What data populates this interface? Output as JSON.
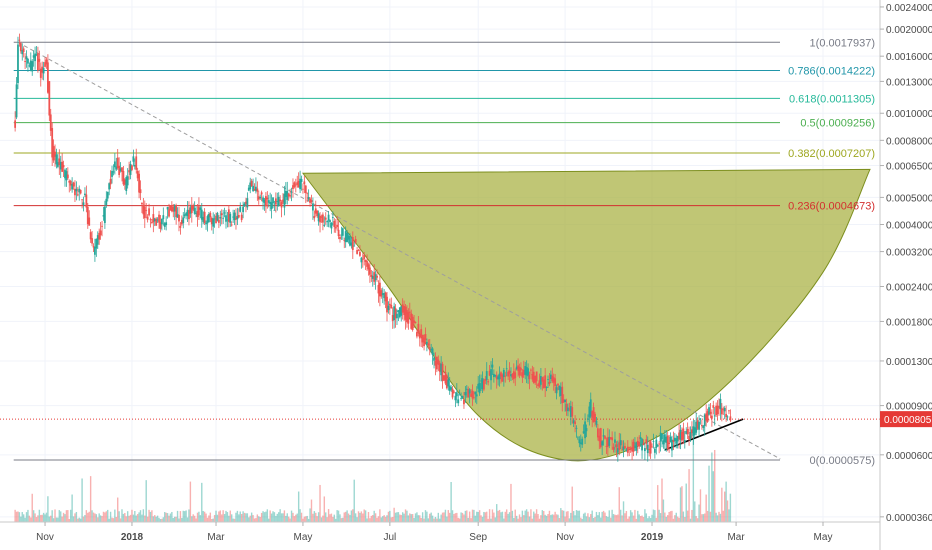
{
  "colors": {
    "up": "#26a69a",
    "down": "#ef5350",
    "line": "#e8484f",
    "cup_fill": "#a8b040",
    "cup_stroke": "#7d8f1f",
    "trend_dash": "#9e9e9e",
    "current_price_line": "#e53935"
  },
  "chart_data": {
    "type": "candlestick",
    "title": "",
    "xlabel": "",
    "ylabel": "",
    "y_scale": "log",
    "x_ticks": [
      {
        "date": "2017-11-01",
        "label": "Nov"
      },
      {
        "date": "2018-01-01",
        "label": "2018"
      },
      {
        "date": "2018-03-01",
        "label": "Mar"
      },
      {
        "date": "2018-05-01",
        "label": "May"
      },
      {
        "date": "2018-07-01",
        "label": "Jul"
      },
      {
        "date": "2018-09-01",
        "label": "Sep"
      },
      {
        "date": "2018-11-01",
        "label": "Nov"
      },
      {
        "date": "2019-01-01",
        "label": "2019"
      },
      {
        "date": "2019-03-01",
        "label": "Mar"
      },
      {
        "date": "2019-05-01",
        "label": "May"
      }
    ],
    "y_ticks": [
      "0.0024000",
      "0.0020000",
      "0.0016000",
      "0.0013000",
      "0.0010000",
      "0.0008000",
      "0.0006500",
      "0.0005000",
      "0.0004000",
      "0.0003200",
      "0.0002400",
      "0.0001800",
      "0.0001300",
      "0.0000900",
      "0.0000600",
      "0.0000360"
    ],
    "y_tick_values": [
      0.0024,
      0.002,
      0.0016,
      0.0013,
      0.001,
      0.0008,
      0.00065,
      0.0005,
      0.0004,
      0.00032,
      0.00024,
      0.00018,
      0.00013,
      9e-05,
      6e-05,
      3.6e-05
    ],
    "ylim": [
      3.45e-05,
      0.0025
    ],
    "xlim": [
      "2017-10-06",
      "2019-06-10"
    ],
    "fib_levels": [
      {
        "ratio": "1",
        "value": 0.0017937,
        "label": "1(0.0017937)",
        "color": "#787b86"
      },
      {
        "ratio": "0.786",
        "value": 0.0014222,
        "label": "0.786(0.0014222)",
        "color": "#2196a9"
      },
      {
        "ratio": "0.618",
        "value": 0.0011305,
        "label": "0.618(0.0011305)",
        "color": "#26b99a"
      },
      {
        "ratio": "0.5",
        "value": 0.0009256,
        "label": "0.5(0.0009256)",
        "color": "#4caf50"
      },
      {
        "ratio": "0.382",
        "value": 0.0007207,
        "label": "0.382(0.0007207)",
        "color": "#9ea720"
      },
      {
        "ratio": "0.236",
        "value": 0.0004673,
        "label": "0.236(0.0004673)",
        "color": "#d32f2f"
      },
      {
        "ratio": "0",
        "value": 5.75e-05,
        "label": "0(0.0000575)",
        "color": "#787b86"
      }
    ],
    "current_price": {
      "value": 8.05e-05,
      "label": "0.0000805"
    },
    "price_path": [
      {
        "date": "2017-10-11",
        "close": 0.00092
      },
      {
        "date": "2017-10-13",
        "close": 0.0018
      },
      {
        "date": "2017-10-17",
        "close": 0.0016
      },
      {
        "date": "2017-10-21",
        "close": 0.00145
      },
      {
        "date": "2017-10-25",
        "close": 0.0016
      },
      {
        "date": "2017-10-29",
        "close": 0.0014
      },
      {
        "date": "2017-11-02",
        "close": 0.0015
      },
      {
        "date": "2017-11-06",
        "close": 0.00072
      },
      {
        "date": "2017-11-11",
        "close": 0.00066
      },
      {
        "date": "2017-11-17",
        "close": 0.00058
      },
      {
        "date": "2017-11-23",
        "close": 0.00052
      },
      {
        "date": "2017-11-29",
        "close": 0.00049
      },
      {
        "date": "2017-12-05",
        "close": 0.00032
      },
      {
        "date": "2017-12-10",
        "close": 0.00038
      },
      {
        "date": "2017-12-16",
        "close": 0.00055
      },
      {
        "date": "2017-12-21",
        "close": 0.00068
      },
      {
        "date": "2017-12-27",
        "close": 0.00056
      },
      {
        "date": "2018-01-03",
        "close": 0.00069
      },
      {
        "date": "2018-01-08",
        "close": 0.00045
      },
      {
        "date": "2018-01-15",
        "close": 0.00043
      },
      {
        "date": "2018-01-22",
        "close": 0.0004
      },
      {
        "date": "2018-01-29",
        "close": 0.00047
      },
      {
        "date": "2018-02-05",
        "close": 0.0004
      },
      {
        "date": "2018-02-12",
        "close": 0.00046
      },
      {
        "date": "2018-02-19",
        "close": 0.00043
      },
      {
        "date": "2018-02-26",
        "close": 0.00041
      },
      {
        "date": "2018-03-05",
        "close": 0.00044
      },
      {
        "date": "2018-03-12",
        "close": 0.00042
      },
      {
        "date": "2018-03-19",
        "close": 0.00044
      },
      {
        "date": "2018-03-26",
        "close": 0.00056
      },
      {
        "date": "2018-04-02",
        "close": 0.00049
      },
      {
        "date": "2018-04-09",
        "close": 0.00047
      },
      {
        "date": "2018-04-16",
        "close": 0.00048
      },
      {
        "date": "2018-04-23",
        "close": 0.00053
      },
      {
        "date": "2018-04-30",
        "close": 0.00056
      },
      {
        "date": "2018-05-07",
        "close": 0.00046
      },
      {
        "date": "2018-05-14",
        "close": 0.00042
      },
      {
        "date": "2018-05-21",
        "close": 0.00041
      },
      {
        "date": "2018-05-28",
        "close": 0.00037
      },
      {
        "date": "2018-06-04",
        "close": 0.00035
      },
      {
        "date": "2018-06-11",
        "close": 0.0003
      },
      {
        "date": "2018-06-18",
        "close": 0.00027
      },
      {
        "date": "2018-06-25",
        "close": 0.00023
      },
      {
        "date": "2018-07-02",
        "close": 0.00019
      },
      {
        "date": "2018-07-09",
        "close": 0.0002
      },
      {
        "date": "2018-07-16",
        "close": 0.00018
      },
      {
        "date": "2018-07-23",
        "close": 0.00016
      },
      {
        "date": "2018-07-30",
        "close": 0.00014
      },
      {
        "date": "2018-08-06",
        "close": 0.00012
      },
      {
        "date": "2018-08-13",
        "close": 0.0001
      },
      {
        "date": "2018-08-20",
        "close": 9.5e-05
      },
      {
        "date": "2018-08-27",
        "close": 0.0001
      },
      {
        "date": "2018-09-03",
        "close": 0.000105
      },
      {
        "date": "2018-09-10",
        "close": 0.00012
      },
      {
        "date": "2018-09-17",
        "close": 0.000115
      },
      {
        "date": "2018-09-24",
        "close": 0.000118
      },
      {
        "date": "2018-10-01",
        "close": 0.00012
      },
      {
        "date": "2018-10-08",
        "close": 0.000117
      },
      {
        "date": "2018-10-15",
        "close": 0.00011
      },
      {
        "date": "2018-10-22",
        "close": 0.00011
      },
      {
        "date": "2018-10-29",
        "close": 0.0001
      },
      {
        "date": "2018-11-05",
        "close": 8.5e-05
      },
      {
        "date": "2018-11-12",
        "close": 6.5e-05
      },
      {
        "date": "2018-11-19",
        "close": 9e-05
      },
      {
        "date": "2018-11-26",
        "close": 6.8e-05
      },
      {
        "date": "2018-12-03",
        "close": 6.6e-05
      },
      {
        "date": "2018-12-10",
        "close": 6.4e-05
      },
      {
        "date": "2018-12-17",
        "close": 6.3e-05
      },
      {
        "date": "2018-12-24",
        "close": 6.6e-05
      },
      {
        "date": "2018-12-31",
        "close": 6.3e-05
      },
      {
        "date": "2019-01-07",
        "close": 6.8e-05
      },
      {
        "date": "2019-01-14",
        "close": 6.6e-05
      },
      {
        "date": "2019-01-21",
        "close": 7e-05
      },
      {
        "date": "2019-01-28",
        "close": 7.2e-05
      },
      {
        "date": "2019-02-04",
        "close": 7.8e-05
      },
      {
        "date": "2019-02-11",
        "close": 8.5e-05
      },
      {
        "date": "2019-02-18",
        "close": 9e-05
      },
      {
        "date": "2019-02-25",
        "close": 8.05e-05
      }
    ],
    "cup_curve": [
      {
        "date": "2018-05-01",
        "value": 0.00061
      },
      {
        "date": "2018-07-01",
        "value": 0.000235
      },
      {
        "date": "2018-09-01",
        "value": 8.3e-05
      },
      {
        "date": "2018-11-01",
        "value": 5.75e-05
      },
      {
        "date": "2019-01-01",
        "value": 6.8e-05
      },
      {
        "date": "2019-03-01",
        "value": 0.000115
      },
      {
        "date": "2019-05-01",
        "value": 0.00027
      },
      {
        "date": "2019-06-03",
        "value": 0.00063
      }
    ],
    "cup_rim_end": {
      "date": "2019-06-03",
      "value": 0.00063
    },
    "cup_rim_start": {
      "date": "2018-05-01",
      "value": 0.00061
    },
    "downtrend_line": {
      "start": {
        "date": "2017-10-13",
        "value": 0.0017937
      },
      "end": {
        "date": "2019-04-01",
        "value": 5.8e-05
      }
    },
    "rising_trendline": {
      "start": {
        "date": "2019-01-10",
        "value": 6.25e-05
      },
      "end": {
        "date": "2019-03-06",
        "value": 8.05e-05
      }
    }
  }
}
